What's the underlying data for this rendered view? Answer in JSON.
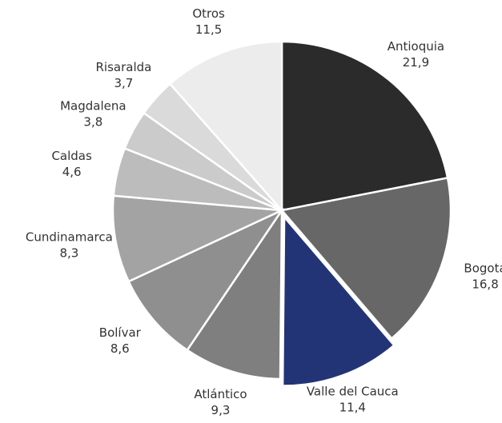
{
  "chart_data": {
    "type": "pie",
    "categories": [
      "Antioquia",
      "Bogotá",
      "Valle del Cauca",
      "Atlántico",
      "Bolívar",
      "Cundinamarca",
      "Caldas",
      "Magdalena",
      "Risaralda",
      "Otros"
    ],
    "values": [
      21.9,
      16.8,
      11.4,
      9.3,
      8.6,
      8.3,
      4.6,
      3.8,
      3.7,
      11.5
    ],
    "value_labels": [
      "21,9",
      "16,8",
      "11,4",
      "9,3",
      "8,6",
      "8,3",
      "4,6",
      "3,8",
      "3,7",
      "11,5"
    ],
    "colors": [
      "#2b2b2b",
      "#676767",
      "#233476",
      "#7f7f7f",
      "#8f8f8f",
      "#a3a3a3",
      "#bcbcbc",
      "#cbcbcb",
      "#dadada",
      "#ececec"
    ]
  }
}
